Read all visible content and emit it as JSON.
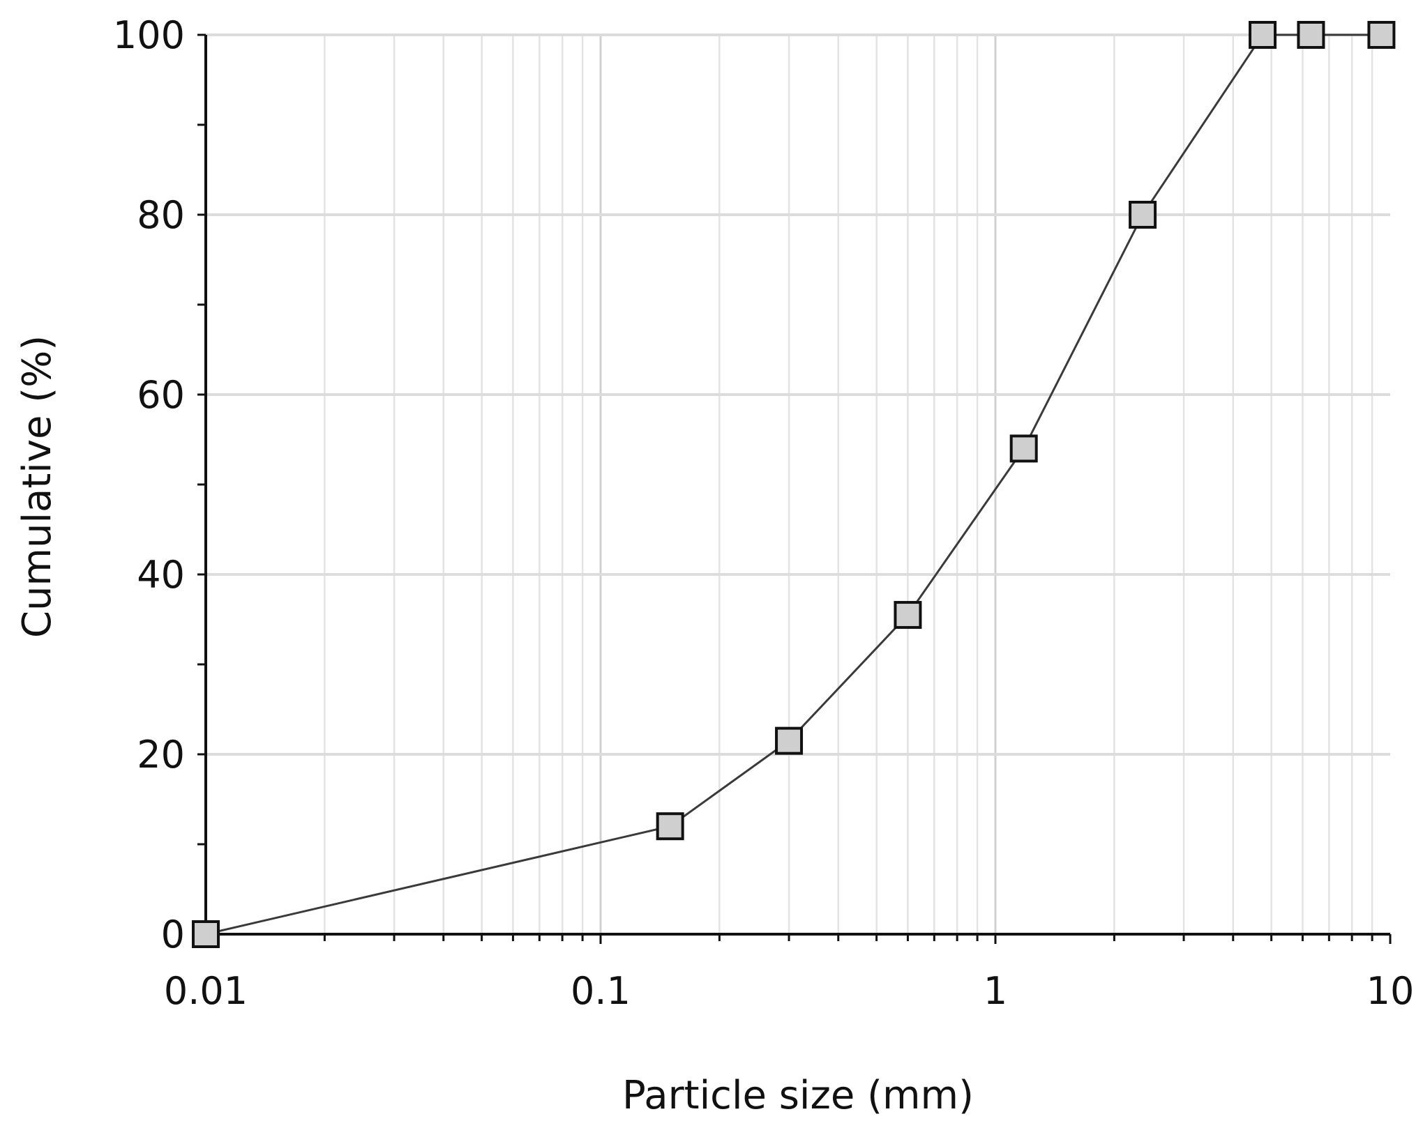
{
  "chart_data": {
    "type": "line",
    "title": "",
    "xlabel": "Particle size (mm)",
    "ylabel": "Cumulative (%)",
    "xscale": "log",
    "xlim": [
      0.01,
      10
    ],
    "ylim": [
      0,
      100
    ],
    "x_ticks": [
      "0.01",
      "0.1",
      "1",
      "10"
    ],
    "y_ticks": [
      "0",
      "20",
      "40",
      "60",
      "80",
      "100"
    ],
    "grid": true,
    "legend": "none",
    "marker": "square",
    "colors": {
      "line": "#3a3a3a",
      "marker_fill": "#cfcfcf",
      "marker_edge": "#111111",
      "grid": "#e3e3e3",
      "axis": "#111111"
    },
    "series": [
      {
        "x": [
          0.01,
          0.15,
          0.3,
          0.6,
          1.18,
          2.36,
          4.75,
          6.3,
          9.5
        ],
        "y": [
          0,
          12,
          21.5,
          35.5,
          54,
          80,
          100,
          100,
          100
        ]
      }
    ]
  }
}
